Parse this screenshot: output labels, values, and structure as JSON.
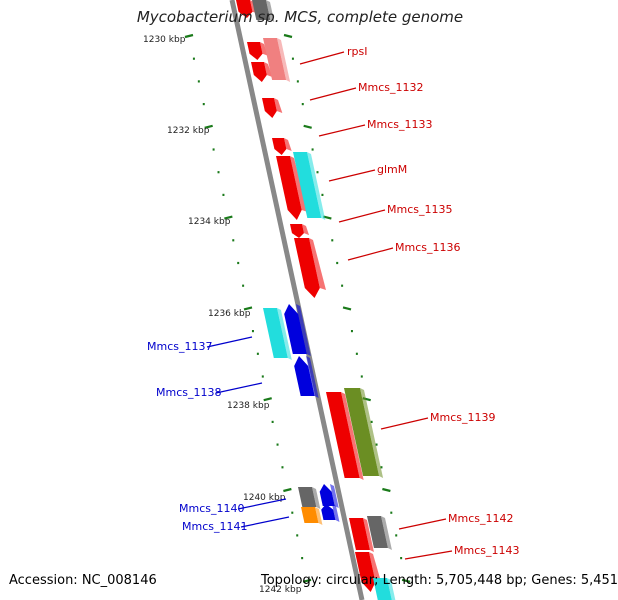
{
  "title": "Mycobacterium sp. MCS, complete genome",
  "footer": {
    "accession": "Accession: NC_008146",
    "topology": "Topology: circular; Length: 5,705,448 bp; Genes: 5,451"
  },
  "colors": {
    "backbone": "#888888",
    "tick": "#1a7a1a",
    "gene_red": "#ee0000",
    "gene_pink": "#f08080",
    "gene_cyan": "#22dddd",
    "gene_blue": "#0000dd",
    "gene_olive": "#6b8e23",
    "gene_gray": "#666666",
    "gene_orange": "#ff8c00",
    "label_red": "#cc0000",
    "label_blue": "#0000cc"
  },
  "scale_labels": [
    "1230 kbp",
    "1232 kbp",
    "1234 kbp",
    "1236 kbp",
    "1238 kbp",
    "1240 kbp",
    "1242 kbp"
  ],
  "gene_labels": [
    {
      "text": "rpsI",
      "side": "right",
      "color": "red"
    },
    {
      "text": "Mmcs_1132",
      "side": "right",
      "color": "red"
    },
    {
      "text": "Mmcs_1133",
      "side": "right",
      "color": "red"
    },
    {
      "text": "glmM",
      "side": "right",
      "color": "red"
    },
    {
      "text": "Mmcs_1135",
      "side": "right",
      "color": "red"
    },
    {
      "text": "Mmcs_1136",
      "side": "right",
      "color": "red"
    },
    {
      "text": "Mmcs_1137",
      "side": "left",
      "color": "blue"
    },
    {
      "text": "Mmcs_1138",
      "side": "left",
      "color": "blue"
    },
    {
      "text": "Mmcs_1139",
      "side": "right",
      "color": "red"
    },
    {
      "text": "Mmcs_1140",
      "side": "left",
      "color": "blue"
    },
    {
      "text": "Mmcs_1141",
      "side": "left",
      "color": "blue"
    },
    {
      "text": "Mmcs_1142",
      "side": "right",
      "color": "red"
    },
    {
      "text": "Mmcs_1143",
      "side": "right",
      "color": "red"
    }
  ]
}
